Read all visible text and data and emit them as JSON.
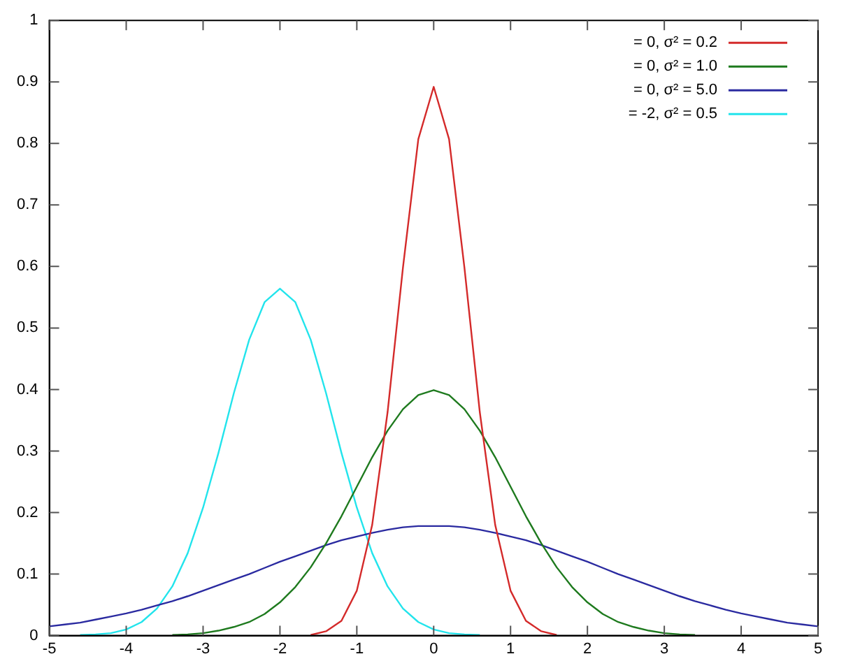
{
  "chart_data": {
    "type": "line",
    "x": [
      -5,
      -4.8,
      -4.6,
      -4.4,
      -4.2,
      -4,
      -3.8,
      -3.6,
      -3.4,
      -3.2,
      -3,
      -2.8,
      -2.6,
      -2.4,
      -2.2,
      -2,
      -1.8,
      -1.6,
      -1.4,
      -1.2,
      -1,
      -0.8,
      -0.6,
      -0.4,
      -0.2,
      0,
      0.2,
      0.4,
      0.6,
      0.8,
      1,
      1.2,
      1.4,
      1.6,
      1.8,
      2,
      2.2,
      2.4,
      2.6,
      2.8,
      3,
      3.2,
      3.4,
      3.6,
      3.8,
      4,
      4.2,
      4.4,
      4.6,
      4.8,
      5
    ],
    "series": [
      {
        "name": "= 0, σ² = 0.2",
        "color": "#d42a2a",
        "values": [
          null,
          null,
          null,
          null,
          null,
          null,
          null,
          null,
          null,
          null,
          null,
          null,
          null,
          null,
          null,
          null,
          null,
          0.001,
          0.007,
          0.024,
          0.073,
          0.18,
          0.363,
          0.598,
          0.807,
          0.892,
          0.807,
          0.598,
          0.363,
          0.18,
          0.073,
          0.024,
          0.007,
          0.001,
          null,
          null,
          null,
          null,
          null,
          null,
          null,
          null,
          null,
          null,
          null,
          null,
          null,
          null,
          null,
          null,
          null
        ]
      },
      {
        "name": "= 0, σ² = 1.0",
        "color": "#1e7a1e",
        "values": [
          null,
          null,
          null,
          null,
          null,
          null,
          null,
          null,
          0.001,
          0.002,
          0.004,
          0.008,
          0.014,
          0.022,
          0.035,
          0.054,
          0.079,
          0.111,
          0.15,
          0.194,
          0.242,
          0.29,
          0.333,
          0.368,
          0.391,
          0.399,
          0.391,
          0.368,
          0.333,
          0.29,
          0.242,
          0.194,
          0.15,
          0.111,
          0.079,
          0.054,
          0.035,
          0.022,
          0.014,
          0.008,
          0.004,
          0.002,
          0.001,
          null,
          null,
          null,
          null,
          null,
          null,
          null,
          null
        ]
      },
      {
        "name": "= 0, σ² = 5.0",
        "color": "#2a2aa0",
        "values": [
          0.015,
          0.018,
          0.021,
          0.026,
          0.031,
          0.036,
          0.042,
          0.049,
          0.056,
          0.064,
          0.073,
          0.082,
          0.091,
          0.1,
          0.11,
          0.12,
          0.129,
          0.138,
          0.147,
          0.155,
          0.161,
          0.167,
          0.172,
          0.176,
          0.178,
          0.178,
          0.178,
          0.176,
          0.172,
          0.167,
          0.161,
          0.155,
          0.147,
          0.138,
          0.129,
          0.12,
          0.11,
          0.1,
          0.091,
          0.082,
          0.073,
          0.064,
          0.056,
          0.049,
          0.042,
          0.036,
          0.031,
          0.026,
          0.021,
          0.018,
          0.015
        ]
      },
      {
        "name": "= -2, σ² = 0.5",
        "color": "#22e4ec",
        "values": [
          null,
          null,
          0.001,
          0.002,
          0.004,
          0.01,
          0.022,
          0.044,
          0.08,
          0.134,
          0.208,
          0.297,
          0.394,
          0.481,
          0.542,
          0.564,
          0.542,
          0.481,
          0.394,
          0.297,
          0.208,
          0.134,
          0.08,
          0.044,
          0.022,
          0.01,
          0.004,
          0.002,
          0.001,
          null,
          null,
          null,
          null,
          null,
          null,
          null,
          null,
          null,
          null,
          null,
          null,
          null,
          null,
          null,
          null,
          null,
          null,
          null,
          null,
          null,
          null
        ]
      }
    ],
    "xlim": [
      -5,
      5
    ],
    "xticks": [
      -5,
      -4,
      -3,
      -2,
      -1,
      0,
      1,
      2,
      3,
      4,
      5
    ],
    "ylim": [
      0,
      1
    ],
    "yticks": [
      0,
      0.1,
      0.2,
      0.3,
      0.4,
      0.5,
      0.6,
      0.7,
      0.8,
      0.9,
      1
    ],
    "legend": "top right",
    "marker": "none",
    "line_style": "solid"
  }
}
